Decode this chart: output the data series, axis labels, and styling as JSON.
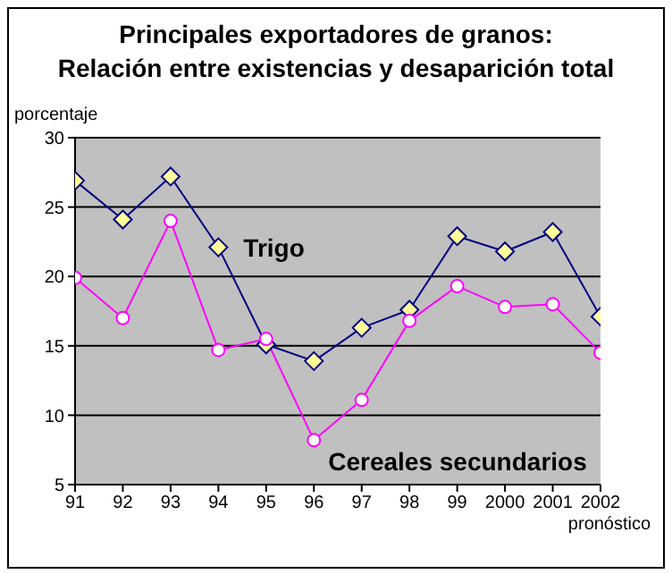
{
  "chart_data": {
    "type": "line",
    "title": "Principales exportadores de granos:\nRelación entre existencias y desaparición total",
    "ylabel": "porcentaje",
    "categories": [
      "91",
      "92",
      "93",
      "94",
      "95",
      "96",
      "97",
      "98",
      "99",
      "2000",
      "2001",
      "2002"
    ],
    "series": [
      {
        "name": "Trigo",
        "color": "#000080",
        "marker": "diamond",
        "values": [
          26.9,
          24.1,
          27.2,
          22.1,
          15.1,
          13.9,
          16.3,
          17.6,
          22.9,
          21.8,
          23.2,
          17.1
        ]
      },
      {
        "name": "Cereales secundarios",
        "color": "#ff00ff",
        "marker": "circle",
        "values": [
          19.9,
          17.0,
          24.0,
          14.7,
          15.5,
          8.2,
          11.1,
          16.8,
          19.3,
          17.8,
          18.0,
          14.5
        ]
      }
    ],
    "ylim": [
      5,
      30
    ],
    "yticks": [
      5,
      10,
      15,
      20,
      25,
      30
    ],
    "grid": "y",
    "annotations": [
      "pronóstico"
    ]
  }
}
